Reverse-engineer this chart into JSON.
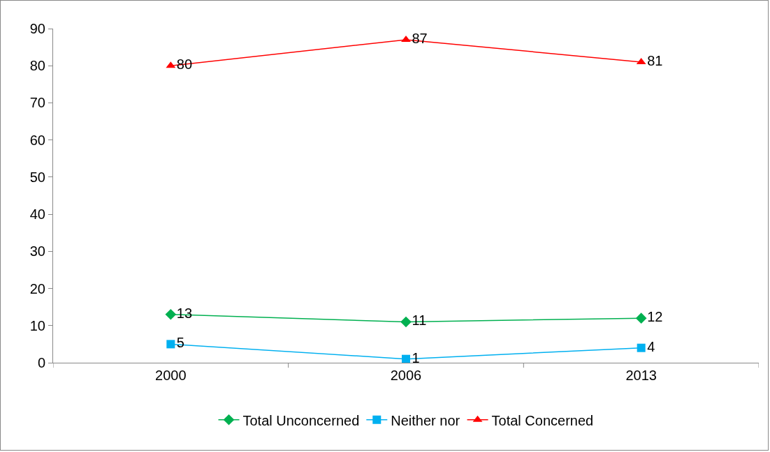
{
  "chart_data": {
    "type": "line",
    "categories": [
      "2000",
      "2006",
      "2013"
    ],
    "series": [
      {
        "name": "Total Unconcerned",
        "color": "#00b050",
        "marker": "diamond",
        "values": [
          13,
          11,
          12
        ]
      },
      {
        "name": "Neither nor",
        "color": "#00b0f0",
        "marker": "square",
        "values": [
          5,
          1,
          4
        ]
      },
      {
        "name": "Total Concerned",
        "color": "#ff0000",
        "marker": "triangle",
        "values": [
          80,
          87,
          81
        ]
      }
    ],
    "ylim": [
      0,
      90
    ],
    "yticks": [
      0,
      10,
      20,
      30,
      40,
      50,
      60,
      70,
      80,
      90
    ],
    "grid": false,
    "legend": "bottom",
    "data_labels": true,
    "line_style": "solid"
  }
}
